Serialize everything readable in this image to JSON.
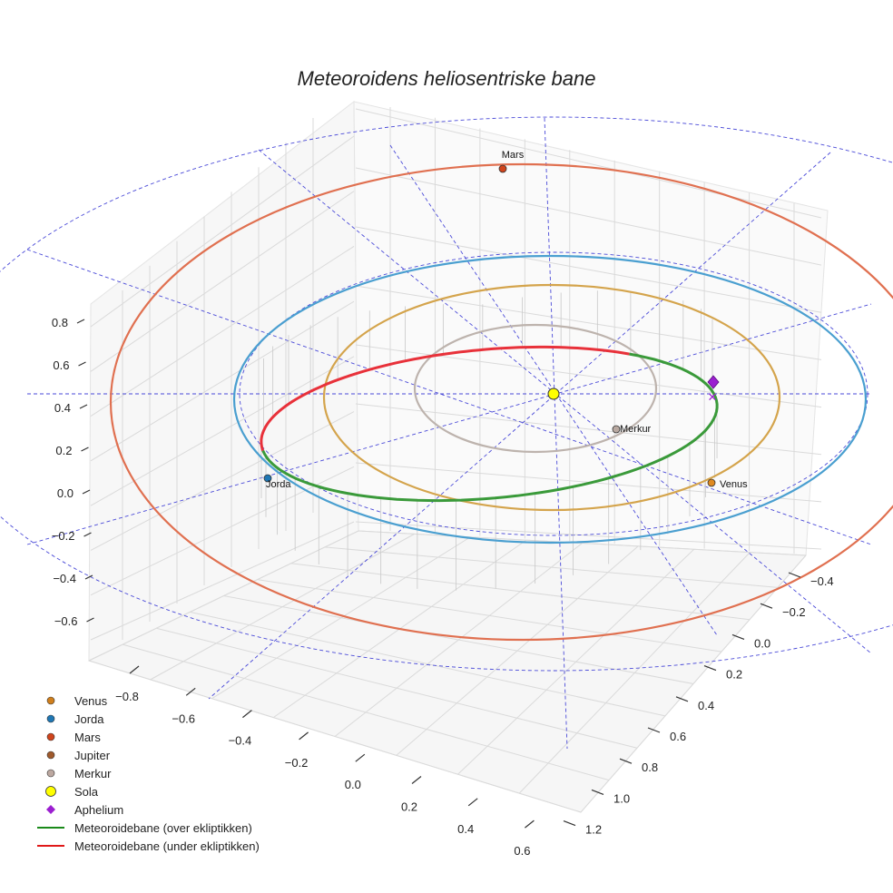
{
  "chart_data": {
    "type": "scatter",
    "title": "Meteoroidens heliosentriske bane",
    "xlabel": "",
    "ylabel": "",
    "zlabel": "",
    "x_ticks": [
      "−0.8",
      "−0.6",
      "−0.4",
      "−0.2",
      "0.0",
      "0.2",
      "0.4",
      "0.6"
    ],
    "y_ticks": [
      "−0.4",
      "−0.2",
      "0.0",
      "0.2",
      "0.4",
      "0.6",
      "0.8",
      "1.0",
      "1.2"
    ],
    "z_ticks": [
      "0.8",
      "0.6",
      "0.4",
      "0.2",
      "0.0",
      "−0.2",
      "−0.4",
      "−0.6"
    ],
    "grid": true,
    "legend_position": "bottom-left",
    "planet_orbits": [
      {
        "name": "Merkur",
        "color": "#bdb3ad"
      },
      {
        "name": "Venus",
        "color": "#d4a44c"
      },
      {
        "name": "Jorda",
        "color": "#4a9fd0"
      },
      {
        "name": "Mars",
        "color": "#e07050"
      }
    ],
    "planet_labels": [
      {
        "name": "Mars",
        "color": "#d0441c"
      },
      {
        "name": "Merkur",
        "color": "#b8a8a0"
      },
      {
        "name": "Venus",
        "color": "#e08a20"
      },
      {
        "name": "Jorda",
        "color": "#1f77b4"
      }
    ],
    "meteoroid_orbit": [
      {
        "name": "Meteoroidebane (over ekliptikken)",
        "color": "#3a9a3a"
      },
      {
        "name": "Meteoroidebane (under ekliptikken)",
        "color": "#e8313a"
      }
    ],
    "legend": [
      {
        "label": "Venus",
        "marker": "circle",
        "color": "#d07f1c"
      },
      {
        "label": "Jorda",
        "marker": "circle",
        "color": "#1f77b4"
      },
      {
        "label": "Mars",
        "marker": "circle",
        "color": "#d0441c"
      },
      {
        "label": "Jupiter",
        "marker": "circle",
        "color": "#a05a2c"
      },
      {
        "label": "Merkur",
        "marker": "circle",
        "color": "#bca8a0"
      },
      {
        "label": "Sola",
        "marker": "circle-large",
        "color": "#ffff00"
      },
      {
        "label": "Aphelium",
        "marker": "diamond",
        "color": "#9b1fd0"
      },
      {
        "label": "Meteoroidebane (over ekliptikken)",
        "marker": "line",
        "color": "#1a8a1a"
      },
      {
        "label": "Meteoroidebane (under ekliptikken)",
        "marker": "line",
        "color": "#e01818"
      }
    ]
  }
}
